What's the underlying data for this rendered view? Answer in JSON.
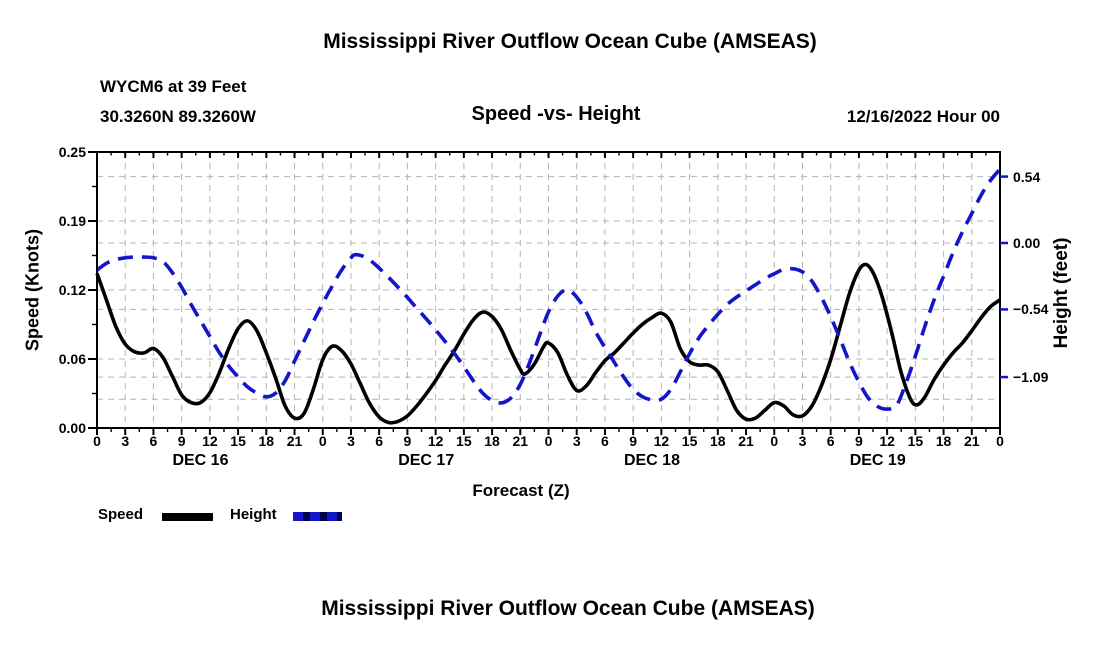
{
  "page": {
    "top_title": "Mississippi River Outflow Ocean Cube (AMSEAS)",
    "bottom_title": "Mississippi River Outflow Ocean Cube (AMSEAS)"
  },
  "header": {
    "station": "WYCM6 at 39 Feet",
    "coords": "30.3260N  89.3260W",
    "subtitle": "Speed -vs- Height",
    "datetime": "12/16/2022 Hour 00"
  },
  "legend": {
    "speed_label": "Speed",
    "height_label": "Height"
  },
  "colors": {
    "speed_line": "#000000",
    "height_line": "#1414cb",
    "grid": "#b4b4b4",
    "background": "#ffffff",
    "text": "#000000"
  },
  "chart_data": {
    "type": "line",
    "title": "Speed -vs- Height",
    "xlabel": "Forecast (Z)",
    "ylabel_left": "Speed (Knots)",
    "ylabel_right": "Height (feet)",
    "x_range_hours": [
      0,
      96
    ],
    "x_major_tick_step_hours": 3,
    "x_minor_tick_step_hours": 1.5,
    "x_tick_label_cycle": [
      "0",
      "3",
      "6",
      "9",
      "12",
      "15",
      "18",
      "21"
    ],
    "day_labels": [
      "DEC 16",
      "DEC 17",
      "DEC 18",
      "DEC 19"
    ],
    "day_label_center_hours": [
      11,
      35,
      59,
      83
    ],
    "left_axis": {
      "label": "Speed (Knots)",
      "tick_labels": [
        "0.00",
        "0.06",
        "0.12",
        "0.19",
        "0.25"
      ],
      "tick_values": [
        0,
        0.0625,
        0.125,
        0.1875,
        0.25
      ],
      "minor_step": 0.03125,
      "range": [
        0,
        0.25
      ]
    },
    "right_axis": {
      "label": "Height (feet)",
      "tick_labels": [
        "0.54",
        "0.00",
        "−0.54",
        "−1.09"
      ],
      "tick_values": [
        0.54,
        0.0,
        -0.54,
        -1.09
      ],
      "range": [
        -1.5,
        0.74
      ]
    },
    "grid": true,
    "hgrid_left_values": [
      0.0625,
      0.125,
      0.1875
    ],
    "hgrid_right_values": [
      0.54,
      0.0,
      -0.54,
      -1.09,
      -1.27
    ],
    "legend_position": "bottom-left",
    "series": [
      {
        "name": "Speed",
        "units": "knots",
        "style": "solid",
        "color": "#000000",
        "points": [
          [
            0,
            0.14
          ],
          [
            1,
            0.116
          ],
          [
            2,
            0.092
          ],
          [
            3,
            0.076
          ],
          [
            4,
            0.069
          ],
          [
            5,
            0.068
          ],
          [
            6,
            0.072
          ],
          [
            7,
            0.064
          ],
          [
            8,
            0.047
          ],
          [
            9,
            0.03
          ],
          [
            10,
            0.023
          ],
          [
            11,
            0.023
          ],
          [
            12,
            0.032
          ],
          [
            13,
            0.05
          ],
          [
            14,
            0.072
          ],
          [
            15,
            0.09
          ],
          [
            16,
            0.097
          ],
          [
            17,
            0.088
          ],
          [
            18,
            0.068
          ],
          [
            19,
            0.045
          ],
          [
            20,
            0.02
          ],
          [
            21,
            0.009
          ],
          [
            22,
            0.013
          ],
          [
            23,
            0.035
          ],
          [
            24,
            0.062
          ],
          [
            25,
            0.074
          ],
          [
            26,
            0.07
          ],
          [
            27,
            0.058
          ],
          [
            28,
            0.04
          ],
          [
            29,
            0.022
          ],
          [
            30,
            0.01
          ],
          [
            31,
            0.005
          ],
          [
            32,
            0.006
          ],
          [
            33,
            0.011
          ],
          [
            34,
            0.02
          ],
          [
            35,
            0.031
          ],
          [
            36,
            0.043
          ],
          [
            37,
            0.057
          ],
          [
            38,
            0.07
          ],
          [
            39,
            0.085
          ],
          [
            40,
            0.098
          ],
          [
            41,
            0.105
          ],
          [
            42,
            0.101
          ],
          [
            43,
            0.089
          ],
          [
            44,
            0.07
          ],
          [
            45,
            0.053
          ],
          [
            45.5,
            0.049
          ],
          [
            46.5,
            0.058
          ],
          [
            47.5,
            0.074
          ],
          [
            48,
            0.077
          ],
          [
            49,
            0.068
          ],
          [
            50,
            0.048
          ],
          [
            51,
            0.034
          ],
          [
            52,
            0.038
          ],
          [
            53,
            0.05
          ],
          [
            54,
            0.061
          ],
          [
            55,
            0.068
          ],
          [
            56,
            0.077
          ],
          [
            57,
            0.086
          ],
          [
            58,
            0.094
          ],
          [
            59,
            0.1
          ],
          [
            60,
            0.104
          ],
          [
            61,
            0.096
          ],
          [
            62,
            0.072
          ],
          [
            63,
            0.06
          ],
          [
            64,
            0.057
          ],
          [
            65,
            0.057
          ],
          [
            66,
            0.051
          ],
          [
            67,
            0.034
          ],
          [
            68,
            0.016
          ],
          [
            69,
            0.008
          ],
          [
            70,
            0.009
          ],
          [
            71,
            0.016
          ],
          [
            72,
            0.023
          ],
          [
            73,
            0.02
          ],
          [
            74,
            0.012
          ],
          [
            75,
            0.011
          ],
          [
            76,
            0.02
          ],
          [
            77,
            0.038
          ],
          [
            78,
            0.062
          ],
          [
            79,
            0.092
          ],
          [
            80,
            0.122
          ],
          [
            81,
            0.143
          ],
          [
            81.8,
            0.148
          ],
          [
            82.6,
            0.139
          ],
          [
            83.5,
            0.118
          ],
          [
            84.5,
            0.086
          ],
          [
            85.5,
            0.05
          ],
          [
            86.5,
            0.026
          ],
          [
            87.2,
            0.021
          ],
          [
            88,
            0.028
          ],
          [
            89,
            0.044
          ],
          [
            90,
            0.057
          ],
          [
            91,
            0.068
          ],
          [
            92,
            0.077
          ],
          [
            93,
            0.088
          ],
          [
            94,
            0.1
          ],
          [
            95,
            0.11
          ],
          [
            96,
            0.116
          ]
        ]
      },
      {
        "name": "Height",
        "units": "feet",
        "style": "dashed",
        "color": "#1414cb",
        "points": [
          [
            0,
            -0.22
          ],
          [
            1,
            -0.165
          ],
          [
            2,
            -0.135
          ],
          [
            3,
            -0.12
          ],
          [
            4,
            -0.115
          ],
          [
            5,
            -0.115
          ],
          [
            6,
            -0.12
          ],
          [
            7,
            -0.15
          ],
          [
            8,
            -0.24
          ],
          [
            9,
            -0.36
          ],
          [
            10,
            -0.5
          ],
          [
            11,
            -0.63
          ],
          [
            12,
            -0.76
          ],
          [
            13,
            -0.89
          ],
          [
            14,
            -1.0
          ],
          [
            15,
            -1.09
          ],
          [
            16,
            -1.17
          ],
          [
            17,
            -1.22
          ],
          [
            18,
            -1.25
          ],
          [
            19,
            -1.22
          ],
          [
            20,
            -1.12
          ],
          [
            21,
            -0.96
          ],
          [
            22,
            -0.8
          ],
          [
            23,
            -0.64
          ],
          [
            24,
            -0.49
          ],
          [
            25,
            -0.35
          ],
          [
            26,
            -0.22
          ],
          [
            27,
            -0.12
          ],
          [
            27.5,
            -0.095
          ],
          [
            28.5,
            -0.115
          ],
          [
            29.5,
            -0.17
          ],
          [
            31,
            -0.28
          ],
          [
            32.5,
            -0.4
          ],
          [
            34,
            -0.53
          ],
          [
            35.5,
            -0.66
          ],
          [
            37,
            -0.8
          ],
          [
            38.5,
            -0.95
          ],
          [
            40,
            -1.12
          ],
          [
            41,
            -1.22
          ],
          [
            42,
            -1.28
          ],
          [
            43,
            -1.3
          ],
          [
            44,
            -1.26
          ],
          [
            45,
            -1.15
          ],
          [
            46,
            -0.97
          ],
          [
            47,
            -0.76
          ],
          [
            48,
            -0.56
          ],
          [
            49,
            -0.43
          ],
          [
            50,
            -0.38
          ],
          [
            51,
            -0.44
          ],
          [
            52,
            -0.56
          ],
          [
            53,
            -0.72
          ],
          [
            54,
            -0.85
          ],
          [
            55,
            -0.97
          ],
          [
            56,
            -1.09
          ],
          [
            57,
            -1.19
          ],
          [
            58,
            -1.25
          ],
          [
            59,
            -1.275
          ],
          [
            60,
            -1.27
          ],
          [
            61,
            -1.19
          ],
          [
            62,
            -1.05
          ],
          [
            63,
            -0.9
          ],
          [
            64,
            -0.77
          ],
          [
            65,
            -0.67
          ],
          [
            66,
            -0.58
          ],
          [
            67,
            -0.5
          ],
          [
            68,
            -0.44
          ],
          [
            69,
            -0.39
          ],
          [
            70,
            -0.34
          ],
          [
            71,
            -0.29
          ],
          [
            72,
            -0.25
          ],
          [
            73,
            -0.215
          ],
          [
            74,
            -0.21
          ],
          [
            75,
            -0.235
          ],
          [
            76,
            -0.31
          ],
          [
            77,
            -0.44
          ],
          [
            78,
            -0.6
          ],
          [
            79,
            -0.78
          ],
          [
            80,
            -0.97
          ],
          [
            81,
            -1.13
          ],
          [
            82,
            -1.26
          ],
          [
            83,
            -1.33
          ],
          [
            84,
            -1.35
          ],
          [
            85,
            -1.32
          ],
          [
            86,
            -1.14
          ],
          [
            87,
            -0.92
          ],
          [
            88,
            -0.68
          ],
          [
            89,
            -0.46
          ],
          [
            90,
            -0.27
          ],
          [
            91,
            -0.08
          ],
          [
            92,
            0.09
          ],
          [
            93,
            0.24
          ],
          [
            94,
            0.39
          ],
          [
            95,
            0.51
          ],
          [
            96,
            0.6
          ]
        ]
      }
    ]
  }
}
